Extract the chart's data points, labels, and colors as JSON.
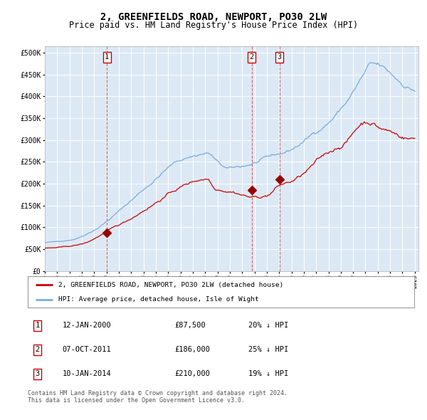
{
  "title": "2, GREENFIELDS ROAD, NEWPORT, PO30 2LW",
  "subtitle": "Price paid vs. HM Land Registry's House Price Index (HPI)",
  "title_fontsize": 10,
  "subtitle_fontsize": 8.5,
  "bg_color": "#dce9f5",
  "grid_color": "#ffffff",
  "ylabel_ticks": [
    "£0",
    "£50K",
    "£100K",
    "£150K",
    "£200K",
    "£250K",
    "£300K",
    "£350K",
    "£400K",
    "£450K",
    "£500K"
  ],
  "ytick_values": [
    0,
    50000,
    100000,
    150000,
    200000,
    250000,
    300000,
    350000,
    400000,
    450000,
    500000
  ],
  "ylim": [
    0,
    515000
  ],
  "sales": [
    {
      "date": 2000.04,
      "price": 87500,
      "label": "1"
    },
    {
      "date": 2011.77,
      "price": 186000,
      "label": "2"
    },
    {
      "date": 2014.03,
      "price": 210000,
      "label": "3"
    }
  ],
  "vlines": [
    2000.04,
    2011.77,
    2014.03
  ],
  "legend_property": "2, GREENFIELDS ROAD, NEWPORT, PO30 2LW (detached house)",
  "legend_hpi": "HPI: Average price, detached house, Isle of Wight",
  "table_rows": [
    {
      "num": "1",
      "date": "12-JAN-2000",
      "price": "£87,500",
      "hpi": "20% ↓ HPI"
    },
    {
      "num": "2",
      "date": "07-OCT-2011",
      "price": "£186,000",
      "hpi": "25% ↓ HPI"
    },
    {
      "num": "3",
      "date": "10-JAN-2014",
      "price": "£210,000",
      "hpi": "19% ↓ HPI"
    }
  ],
  "footer": "Contains HM Land Registry data © Crown copyright and database right 2024.\nThis data is licensed under the Open Government Licence v3.0.",
  "line_color_property": "#cc0000",
  "line_color_hpi": "#7aaadd",
  "marker_color": "#990000"
}
